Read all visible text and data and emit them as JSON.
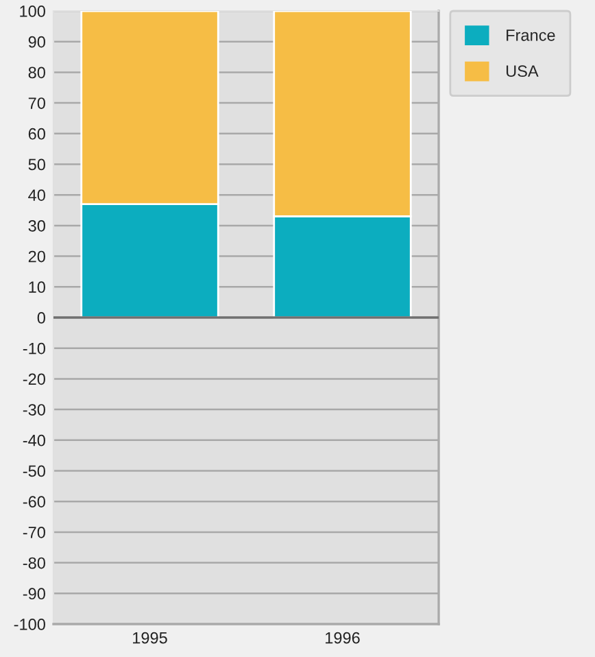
{
  "chart_data": {
    "type": "bar",
    "stacked": true,
    "categories": [
      "1995",
      "1996"
    ],
    "series": [
      {
        "name": "France",
        "color": "#0cadbf",
        "values": [
          37,
          33
        ]
      },
      {
        "name": "USA",
        "color": "#f6bd45",
        "values": [
          63,
          67
        ]
      }
    ],
    "ylim": [
      -100,
      100
    ],
    "yticks": [
      -100,
      -90,
      -80,
      -70,
      -60,
      -50,
      -40,
      -30,
      -20,
      -10,
      0,
      10,
      20,
      30,
      40,
      50,
      60,
      70,
      80,
      90,
      100
    ],
    "grid": "y",
    "legend": "top right"
  }
}
